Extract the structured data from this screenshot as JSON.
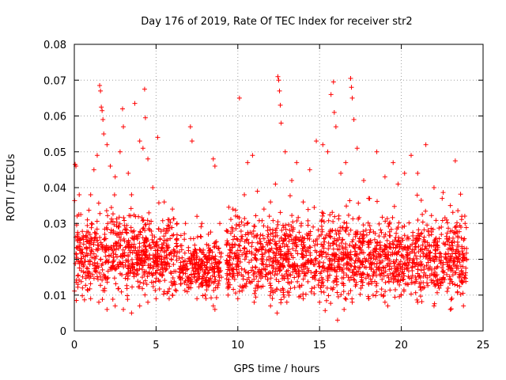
{
  "chart_data": {
    "type": "scatter",
    "title": "Day 176 of 2019, Rate Of TEC Index for receiver str2",
    "xlabel": "GPS time / hours",
    "ylabel": "ROTI / TECUs",
    "xlim": [
      0,
      25
    ],
    "ylim": [
      0,
      0.08
    ],
    "xticks": [
      "0",
      "5",
      "10",
      "15",
      "20",
      "25"
    ],
    "yticks": [
      "0",
      "0.01",
      "0.02",
      "0.03",
      "0.04",
      "0.05",
      "0.06",
      "0.07",
      "0.08"
    ],
    "xtick_values": [
      0,
      5,
      10,
      15,
      20,
      25
    ],
    "ytick_values": [
      0,
      0.01,
      0.02,
      0.03,
      0.04,
      0.05,
      0.06,
      0.07,
      0.08
    ],
    "grid": true,
    "marker": "+",
    "color": "#ff0000",
    "series": [
      {
        "name": "ROTI",
        "points": [
          [
            0.05,
            0.0465
          ],
          [
            0.1,
            0.046
          ],
          [
            0.3,
            0.038
          ],
          [
            0.5,
            0.026
          ],
          [
            0.8,
            0.031
          ],
          [
            1.0,
            0.038
          ],
          [
            1.2,
            0.045
          ],
          [
            1.4,
            0.049
          ],
          [
            1.55,
            0.0685
          ],
          [
            1.6,
            0.067
          ],
          [
            1.65,
            0.0625
          ],
          [
            1.7,
            0.0615
          ],
          [
            1.75,
            0.059
          ],
          [
            1.8,
            0.055
          ],
          [
            2.0,
            0.052
          ],
          [
            2.2,
            0.046
          ],
          [
            2.5,
            0.043
          ],
          [
            2.8,
            0.05
          ],
          [
            2.95,
            0.062
          ],
          [
            3.0,
            0.057
          ],
          [
            3.3,
            0.044
          ],
          [
            3.5,
            0.038
          ],
          [
            3.7,
            0.0635
          ],
          [
            4.0,
            0.053
          ],
          [
            4.2,
            0.051
          ],
          [
            4.3,
            0.0675
          ],
          [
            4.35,
            0.0595
          ],
          [
            4.5,
            0.048
          ],
          [
            4.8,
            0.04
          ],
          [
            5.1,
            0.054
          ],
          [
            5.5,
            0.036
          ],
          [
            5.8,
            0.031
          ],
          [
            6.0,
            0.034
          ],
          [
            6.3,
            0.022
          ],
          [
            6.8,
            0.03
          ],
          [
            7.1,
            0.057
          ],
          [
            7.2,
            0.053
          ],
          [
            7.5,
            0.032
          ],
          [
            7.8,
            0.03
          ],
          [
            8.2,
            0.027
          ],
          [
            8.5,
            0.048
          ],
          [
            8.6,
            0.046
          ],
          [
            8.9,
            0.03
          ],
          [
            9.3,
            0.028
          ],
          [
            9.7,
            0.034
          ],
          [
            10.1,
            0.065
          ],
          [
            10.4,
            0.038
          ],
          [
            10.6,
            0.047
          ],
          [
            10.9,
            0.049
          ],
          [
            11.2,
            0.039
          ],
          [
            11.6,
            0.034
          ],
          [
            12.0,
            0.036
          ],
          [
            12.3,
            0.041
          ],
          [
            12.45,
            0.071
          ],
          [
            12.5,
            0.07
          ],
          [
            12.55,
            0.067
          ],
          [
            12.6,
            0.063
          ],
          [
            12.65,
            0.058
          ],
          [
            12.9,
            0.05
          ],
          [
            13.3,
            0.042
          ],
          [
            13.6,
            0.047
          ],
          [
            14.0,
            0.036
          ],
          [
            14.4,
            0.045
          ],
          [
            14.8,
            0.053
          ],
          [
            15.2,
            0.052
          ],
          [
            15.5,
            0.05
          ],
          [
            15.7,
            0.066
          ],
          [
            15.85,
            0.0695
          ],
          [
            15.9,
            0.061
          ],
          [
            16.0,
            0.057
          ],
          [
            16.3,
            0.044
          ],
          [
            16.6,
            0.047
          ],
          [
            16.9,
            0.0705
          ],
          [
            16.95,
            0.068
          ],
          [
            17.0,
            0.065
          ],
          [
            17.1,
            0.059
          ],
          [
            17.3,
            0.051
          ],
          [
            17.7,
            0.042
          ],
          [
            18.0,
            0.037
          ],
          [
            18.5,
            0.05
          ],
          [
            19.0,
            0.043
          ],
          [
            19.5,
            0.047
          ],
          [
            19.8,
            0.041
          ],
          [
            20.2,
            0.044
          ],
          [
            20.6,
            0.049
          ],
          [
            21.0,
            0.044
          ],
          [
            21.5,
            0.052
          ],
          [
            22.0,
            0.04
          ],
          [
            22.5,
            0.037
          ],
          [
            23.0,
            0.035
          ],
          [
            23.3,
            0.0475
          ],
          [
            23.7,
            0.032
          ],
          [
            23.9,
            0.03
          ],
          [
            0.5,
            0.012
          ],
          [
            1.0,
            0.009
          ],
          [
            1.5,
            0.008
          ],
          [
            2.0,
            0.006
          ],
          [
            2.5,
            0.007
          ],
          [
            3.0,
            0.006
          ],
          [
            3.5,
            0.005
          ],
          [
            4.0,
            0.007
          ],
          [
            4.5,
            0.008
          ],
          [
            5.0,
            0.009
          ],
          [
            5.5,
            0.011
          ],
          [
            6.0,
            0.01
          ],
          [
            7.0,
            0.012
          ],
          [
            7.5,
            0.009
          ],
          [
            8.0,
            0.01
          ],
          [
            8.5,
            0.007
          ],
          [
            8.6,
            0.006
          ],
          [
            9.4,
            0.01
          ],
          [
            10.0,
            0.009
          ],
          [
            11.0,
            0.008
          ],
          [
            12.0,
            0.007
          ],
          [
            12.4,
            0.005
          ],
          [
            13.0,
            0.008
          ],
          [
            14.0,
            0.009
          ],
          [
            15.0,
            0.008
          ],
          [
            16.1,
            0.003
          ],
          [
            16.5,
            0.006
          ],
          [
            17.0,
            0.008
          ],
          [
            18.0,
            0.009
          ],
          [
            19.0,
            0.008
          ],
          [
            20.0,
            0.01
          ],
          [
            21.0,
            0.008
          ],
          [
            22.0,
            0.007
          ],
          [
            23.0,
            0.006
          ],
          [
            23.8,
            0.007
          ]
        ]
      }
    ],
    "dense_band": {
      "description": "dense cloud of ROTI values between about 0.01 and 0.035 TECUs throughout the day, data gap near 6.3-7.0 h and 9.0-9.3 h",
      "segments": [
        {
          "x_start": 0.0,
          "x_end": 6.3,
          "y_min": 0.006,
          "y_max": 0.04
        },
        {
          "x_start": 6.4,
          "x_end": 9.0,
          "y_min": 0.007,
          "y_max": 0.032
        },
        {
          "x_start": 9.3,
          "x_end": 24.0,
          "y_min": 0.005,
          "y_max": 0.04
        }
      ],
      "point_count": 2600
    }
  }
}
